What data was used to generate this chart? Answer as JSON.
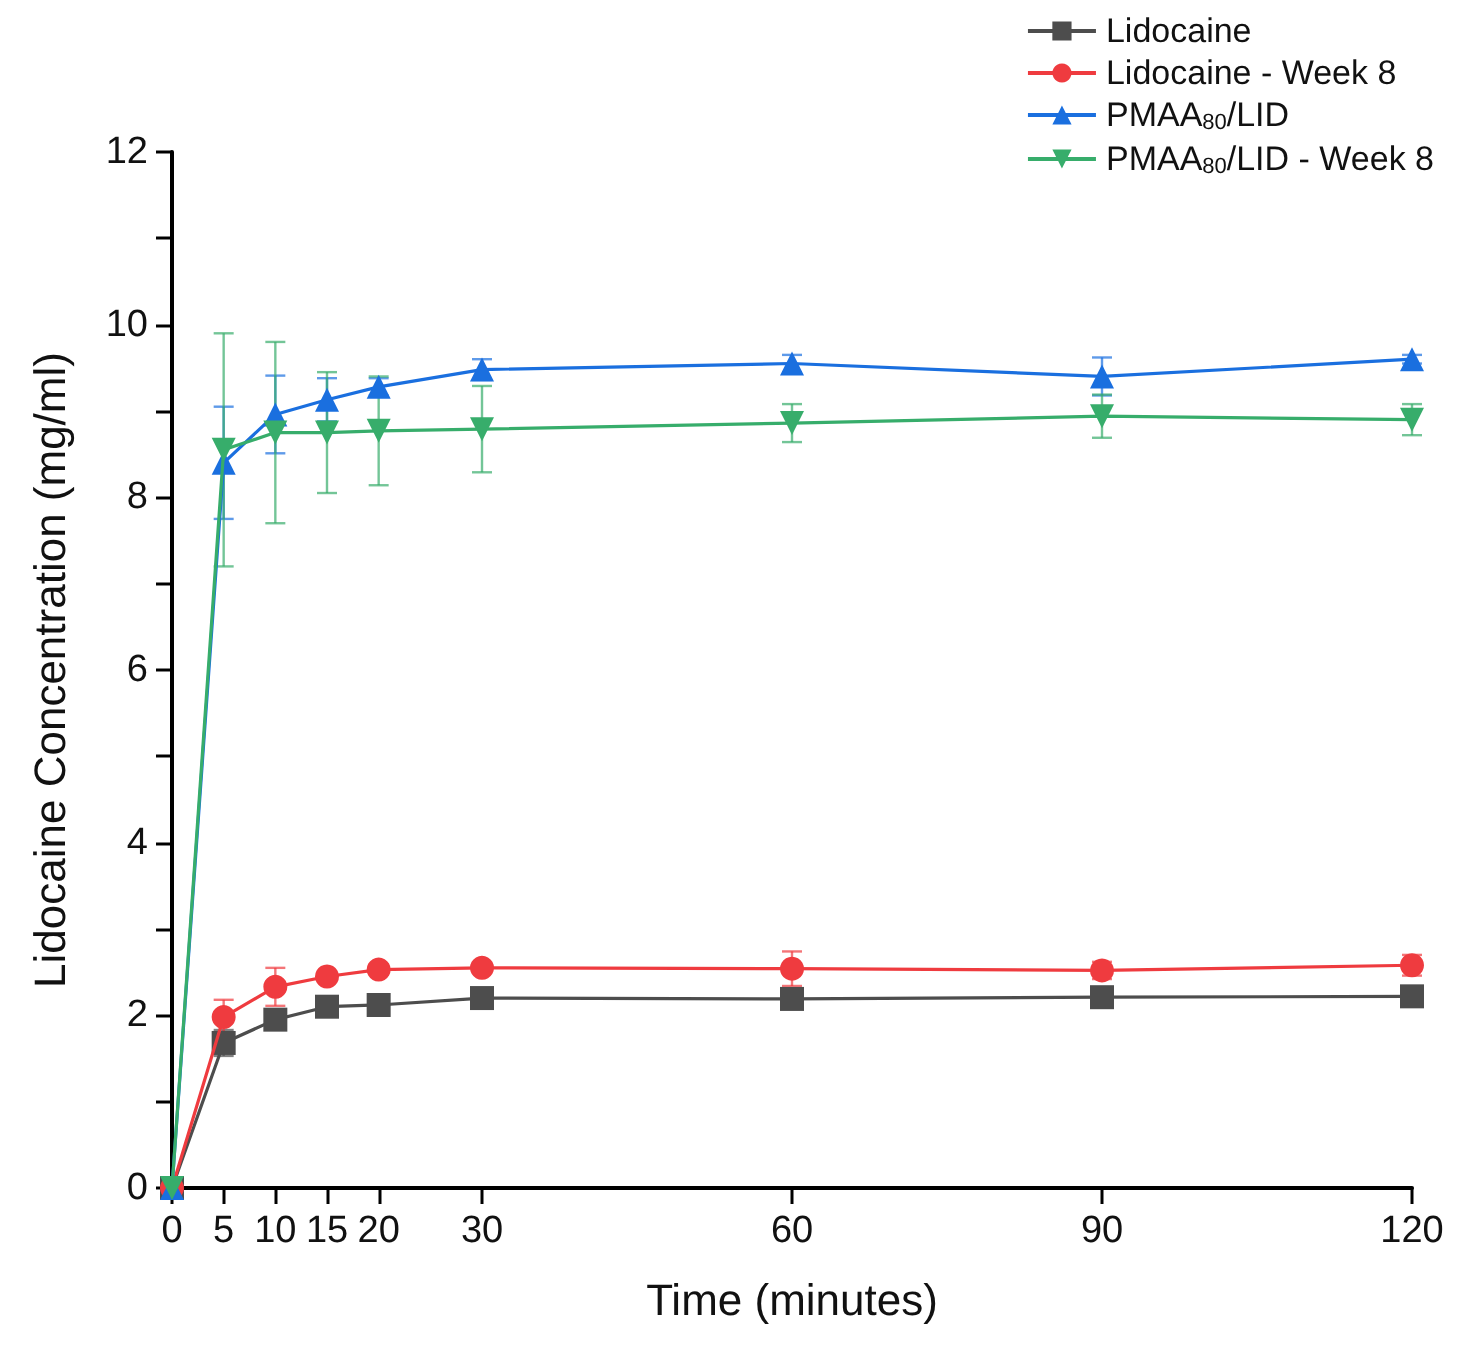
{
  "chart_data": {
    "type": "line",
    "xlabel": "Time (minutes)",
    "ylabel": "Lidocaine Concentration (mg/ml)",
    "x": [
      0,
      5,
      10,
      15,
      20,
      30,
      60,
      90,
      120
    ],
    "xlim": [
      0,
      120
    ],
    "xticks": [
      0,
      5,
      10,
      15,
      20,
      30,
      60,
      90,
      120
    ],
    "ylim": [
      0,
      12
    ],
    "yticks": [
      0,
      {
        "value": 1,
        "label": null
      },
      2,
      {
        "value": 3,
        "label": null
      },
      4,
      {
        "value": 5,
        "label": null
      },
      6,
      {
        "value": 7,
        "label": null
      },
      8,
      {
        "value": 9,
        "label": null
      },
      10,
      {
        "value": 11,
        "label": null
      },
      12
    ],
    "grid": false,
    "legend": "top right",
    "line_style": "solid",
    "series": [
      {
        "name": "Lidocaine",
        "color": "#4d4d4d",
        "marker": "square",
        "values": [
          0,
          1.68,
          1.95,
          2.1,
          2.12,
          2.2,
          2.19,
          2.21,
          2.22
        ],
        "errors": [
          null,
          0.15,
          0.08,
          0.05,
          0.05,
          0.05,
          0.05,
          0.05,
          0.05
        ]
      },
      {
        "name": "Lidocaine - Week 8",
        "color": "#ef3b3f",
        "marker": "circle",
        "values": [
          0,
          1.98,
          2.33,
          2.45,
          2.53,
          2.55,
          2.54,
          2.52,
          2.58
        ],
        "errors": [
          null,
          0.2,
          0.22,
          0.05,
          0.05,
          0.05,
          0.2,
          0.1,
          0.12
        ]
      },
      {
        "name": "PMAA$_{80}$/LID",
        "color": "#1a6fdf",
        "marker": "triangle",
        "values": [
          0,
          8.4,
          8.96,
          9.13,
          9.28,
          9.48,
          9.55,
          9.4,
          9.6
        ],
        "errors": [
          null,
          0.65,
          0.45,
          0.25,
          0.1,
          0.12,
          0.1,
          0.22,
          0.05
        ]
      },
      {
        "name": "PMAA$_{80}$/LID - Week 8",
        "color": "#37ad6b",
        "marker": "triangle-down",
        "values": [
          0,
          8.55,
          8.75,
          8.75,
          8.77,
          8.79,
          8.86,
          8.94,
          8.9
        ],
        "errors": [
          null,
          1.35,
          1.05,
          0.7,
          0.63,
          0.5,
          0.22,
          0.25,
          0.18
        ]
      }
    ]
  }
}
